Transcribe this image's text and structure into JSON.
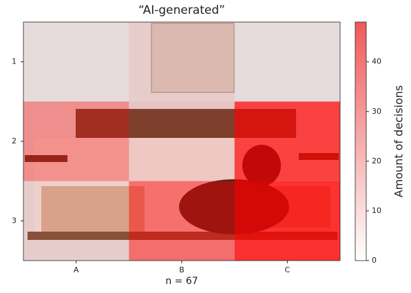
{
  "chart_data": {
    "type": "heatmap",
    "title": "“AI-generated”",
    "x_categories": [
      "A",
      "B",
      "C"
    ],
    "y_categories": [
      "1",
      "2",
      "3"
    ],
    "z": [
      [
        2,
        6,
        2
      ],
      [
        22,
        8,
        42
      ],
      [
        6,
        30,
        46
      ]
    ],
    "color": "#ff0000",
    "clim": [
      0,
      48
    ],
    "cbticks": [
      0,
      10,
      20,
      30,
      40
    ],
    "colorbar_label": "Amount of decisions",
    "annotation": "n = 67"
  }
}
